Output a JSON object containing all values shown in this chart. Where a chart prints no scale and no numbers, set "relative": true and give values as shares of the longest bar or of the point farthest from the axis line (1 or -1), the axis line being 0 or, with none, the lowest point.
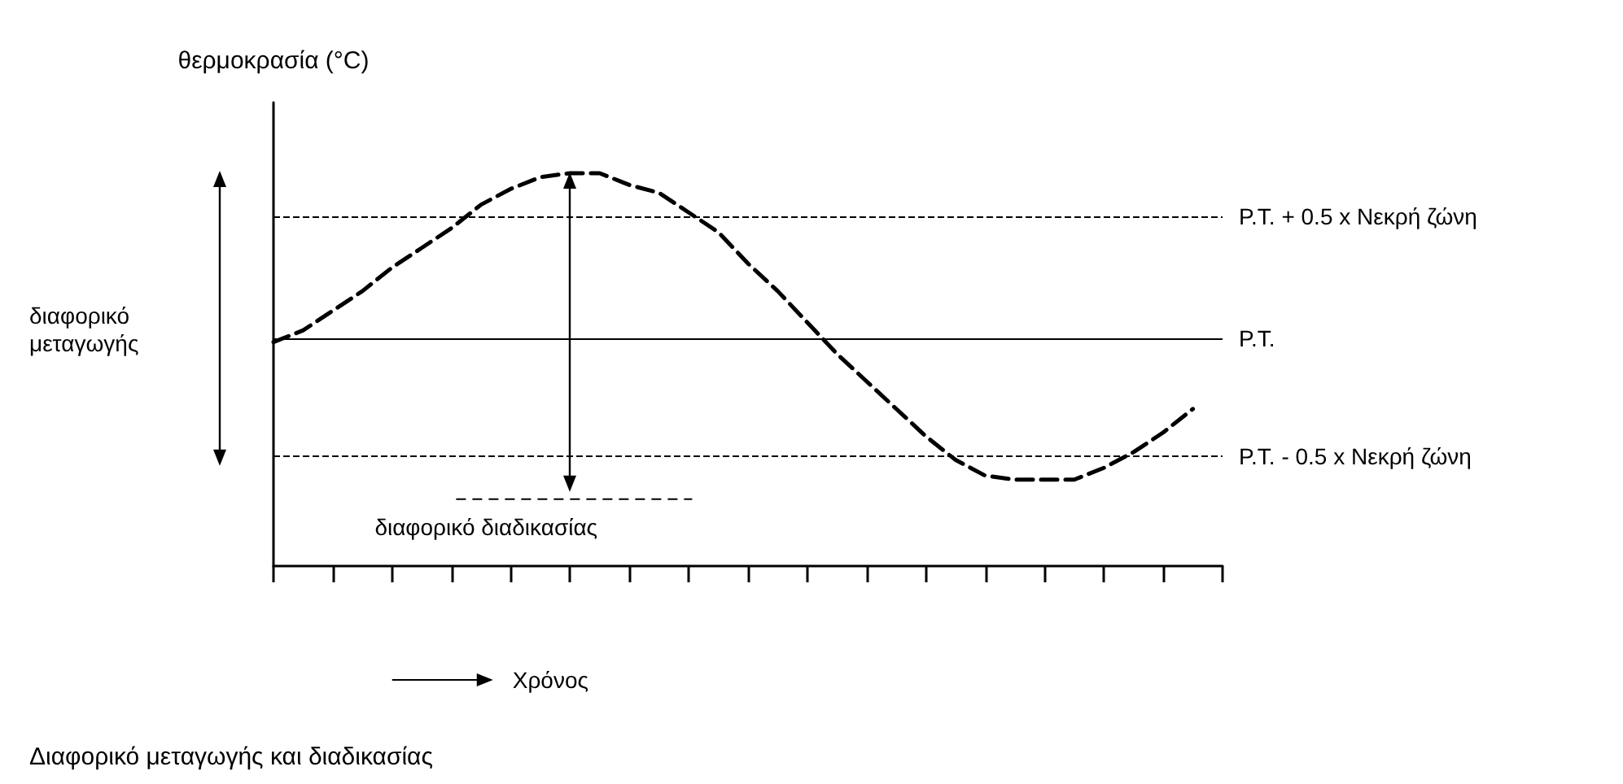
{
  "chart_data": {
    "type": "line",
    "relative": true,
    "ylabel": "θερμοκρασία (°C)",
    "xlabel": "Χρόνος",
    "categories": [
      null,
      null,
      null,
      null,
      null,
      null,
      null,
      null,
      null,
      null,
      null,
      null,
      null,
      null,
      null,
      null,
      null,
      null,
      null,
      null,
      null,
      null,
      null,
      null,
      null,
      null,
      null,
      null,
      null,
      null,
      null,
      null,
      null
    ],
    "series": [
      {
        "color": "#000000",
        "line_style": "dashed",
        "values": [
          0.57,
          0.6,
          0.65,
          0.7,
          0.76,
          0.81,
          0.86,
          0.92,
          0.96,
          0.99,
          1.0,
          1.0,
          0.97,
          0.95,
          0.9,
          0.85,
          0.77,
          0.7,
          0.62,
          0.54,
          0.47,
          0.4,
          0.33,
          0.27,
          0.23,
          0.22,
          0.22,
          0.22,
          0.25,
          0.29,
          0.34,
          0.4,
          null
        ]
      }
    ],
    "ref_lines": [
      {
        "axis": "y",
        "value": 0.89,
        "label": "P.T. + 0.5 x Νεκρή ζώνη",
        "line_style": "dashed",
        "color": "#000000"
      },
      {
        "axis": "y",
        "value": 0.58,
        "label": "P.T.",
        "line_style": "solid",
        "color": "#000000"
      },
      {
        "axis": "y",
        "value": 0.28,
        "label": "P.T. - 0.5 x Νεκρή ζώνη",
        "line_style": "dashed",
        "color": "#000000"
      }
    ],
    "annotations": [
      "διαφορικό μεταγωγής",
      "διαφορικό διαδικασίας",
      "Διαφορικό μεταγωγής και διαδικασίας"
    ],
    "marker": "none",
    "grid": false
  }
}
